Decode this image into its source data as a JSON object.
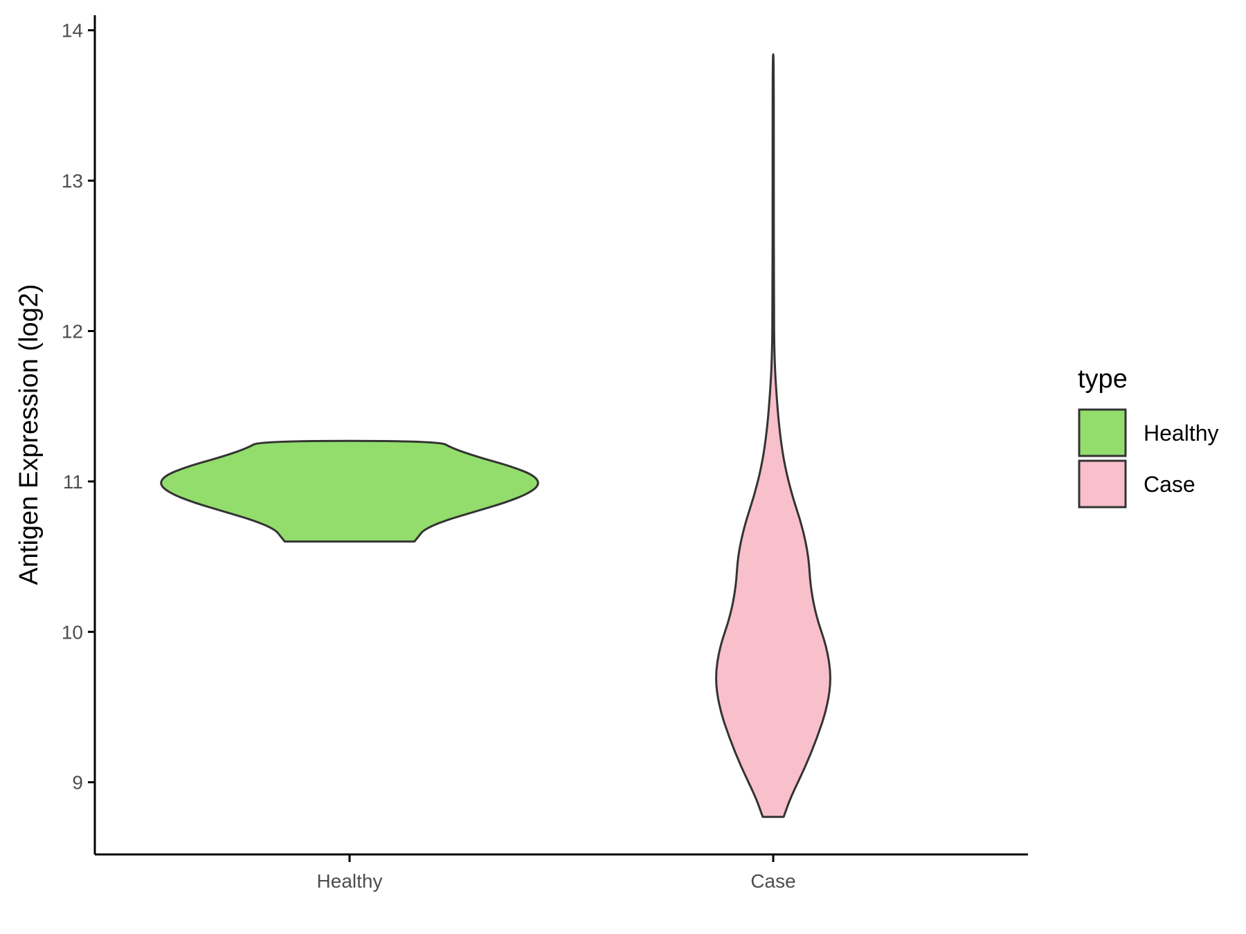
{
  "chart_data": {
    "type": "violin",
    "xlabel": "",
    "ylabel": "Antigen Expression (log2)",
    "ylim": [
      8.52,
      14.1
    ],
    "yticks": [
      "9",
      "10",
      "11",
      "12",
      "13",
      "14"
    ],
    "categories": [
      "Healthy",
      "Case"
    ],
    "legend": {
      "title": "type",
      "position": "right",
      "items": [
        {
          "label": "Healthy",
          "color": "#93dd6c"
        },
        {
          "label": "Case",
          "color": "#f8c0cb"
        }
      ]
    },
    "grid": false,
    "series": [
      {
        "category": "Healthy",
        "color": "#93dd6c",
        "min": 10.6,
        "max": 11.27,
        "density_profile": [
          [
            10.6,
            0.34
          ],
          [
            10.63,
            0.36
          ],
          [
            10.68,
            0.39
          ],
          [
            10.74,
            0.5
          ],
          [
            10.8,
            0.66
          ],
          [
            10.86,
            0.82
          ],
          [
            10.92,
            0.94
          ],
          [
            10.98,
            1.0
          ],
          [
            11.04,
            0.97
          ],
          [
            11.1,
            0.85
          ],
          [
            11.16,
            0.68
          ],
          [
            11.22,
            0.54
          ],
          [
            11.27,
            0.47
          ]
        ]
      },
      {
        "category": "Case",
        "color": "#f8c0cb",
        "min": 8.77,
        "max": 13.84,
        "density_profile": [
          [
            8.77,
            0.18
          ],
          [
            8.9,
            0.3
          ],
          [
            9.1,
            0.55
          ],
          [
            9.3,
            0.76
          ],
          [
            9.5,
            0.93
          ],
          [
            9.7,
            1.0
          ],
          [
            9.9,
            0.92
          ],
          [
            10.1,
            0.74
          ],
          [
            10.3,
            0.64
          ],
          [
            10.5,
            0.61
          ],
          [
            10.7,
            0.5
          ],
          [
            10.9,
            0.33
          ],
          [
            11.1,
            0.2
          ],
          [
            11.3,
            0.12
          ],
          [
            11.5,
            0.07
          ],
          [
            11.8,
            0.02
          ],
          [
            12.2,
            0.012
          ],
          [
            13.0,
            0.01
          ],
          [
            13.84,
            0.01
          ]
        ]
      }
    ]
  }
}
